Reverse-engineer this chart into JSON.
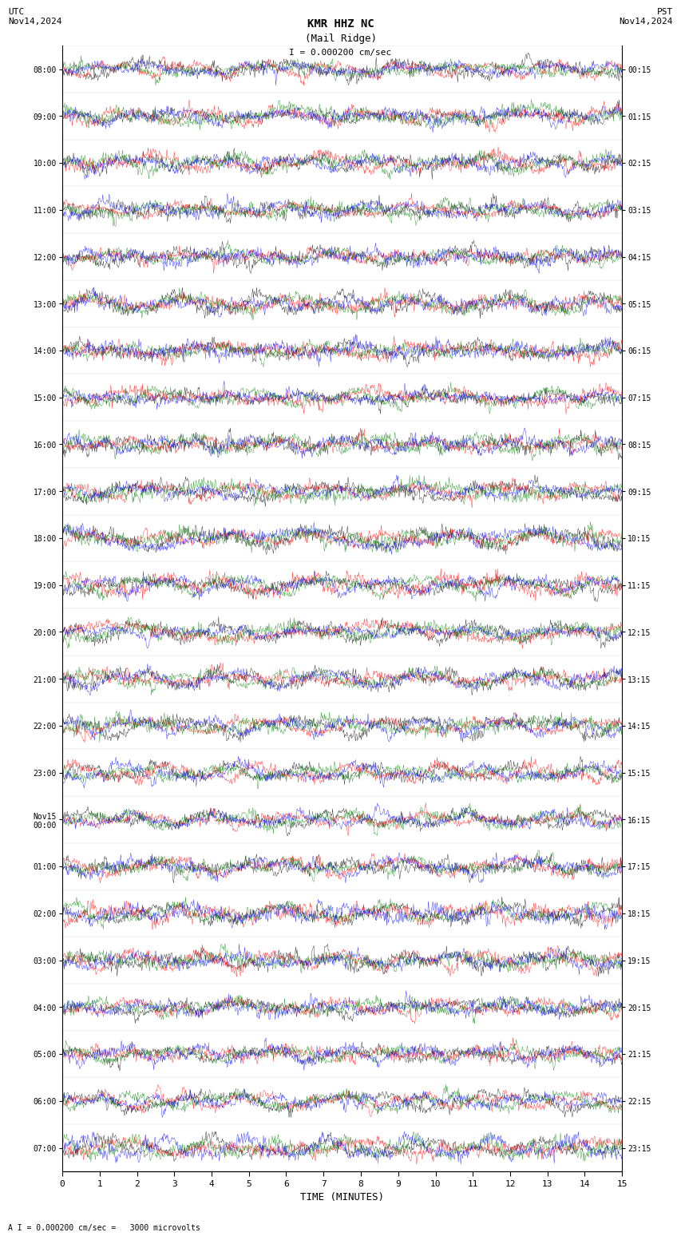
{
  "title_line1": "KMR HHZ NC",
  "title_line2": "(Mail Ridge)",
  "scale_label": "I = 0.000200 cm/sec",
  "top_left_label": "UTC\nNov14,2024",
  "top_right_label": "PST\nNov14,2024",
  "bottom_label": "A I = 0.000200 cm/sec =   3000 microvolts",
  "xlabel": "TIME (MINUTES)",
  "left_times": [
    "08:00",
    "09:00",
    "10:00",
    "11:00",
    "12:00",
    "13:00",
    "14:00",
    "15:00",
    "16:00",
    "17:00",
    "18:00",
    "19:00",
    "20:00",
    "21:00",
    "22:00",
    "23:00",
    "Nov15\n00:00",
    "01:00",
    "02:00",
    "03:00",
    "04:00",
    "05:00",
    "06:00",
    "07:00"
  ],
  "right_times": [
    "00:15",
    "01:15",
    "02:15",
    "03:15",
    "04:15",
    "05:15",
    "06:15",
    "07:15",
    "08:15",
    "09:15",
    "10:15",
    "11:15",
    "12:15",
    "13:15",
    "14:15",
    "15:15",
    "16:15",
    "17:15",
    "18:15",
    "19:15",
    "20:15",
    "21:15",
    "22:15",
    "23:15"
  ],
  "x_ticks": [
    0,
    1,
    2,
    3,
    4,
    5,
    6,
    7,
    8,
    9,
    10,
    11,
    12,
    13,
    14,
    15
  ],
  "n_rows": 24,
  "n_cols": 900,
  "colors": [
    "black",
    "red",
    "green",
    "blue"
  ],
  "bg_color": "white",
  "fig_width": 8.5,
  "fig_height": 15.84,
  "amplitude": 0.35,
  "noise_seed": 42
}
